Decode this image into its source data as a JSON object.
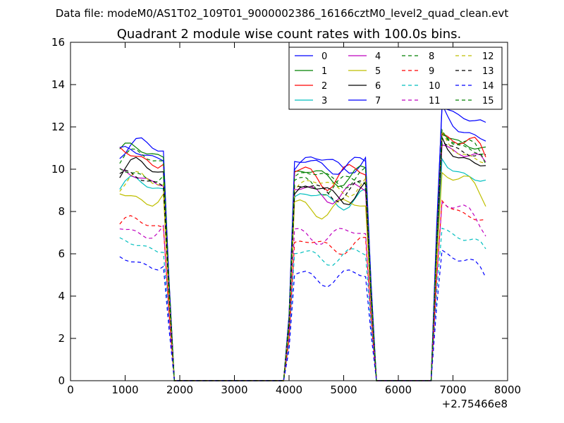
{
  "chart_data": {
    "type": "line",
    "suptitle": "Data file: modeM0/AS1T02_109T01_9000002386_16166cztM0_level2_quad_clean.evt",
    "title": "Quadrant 2 module wise count rates with 100.0s bins.",
    "xlabel": "",
    "ylabel": "",
    "x_offset_label": "+2.75466e8",
    "xlim": [
      0,
      8000
    ],
    "ylim": [
      0,
      16
    ],
    "x_ticks": [
      0,
      1000,
      2000,
      3000,
      4000,
      5000,
      6000,
      7000,
      8000
    ],
    "y_ticks": [
      0,
      2,
      4,
      6,
      8,
      10,
      12,
      14,
      16
    ],
    "legend_position": "top-right",
    "legend_columns": 4,
    "grid": false,
    "segments": [
      {
        "name": "seg1",
        "x": [
          900,
          1000,
          1100,
          1200,
          1300,
          1400,
          1500,
          1600,
          1700
        ]
      },
      {
        "name": "seg2",
        "x": [
          4100,
          4200,
          4300,
          4400,
          4500,
          4600,
          4700,
          4800,
          4900,
          5000,
          5100,
          5200,
          5300,
          5400
        ]
      },
      {
        "name": "seg3",
        "x": [
          6800,
          6900,
          7000,
          7100,
          7200,
          7300,
          7400,
          7500,
          7600
        ]
      }
    ],
    "zero_x": [
      1900,
      2000,
      2100,
      2200,
      2300,
      2400,
      2500,
      2600,
      2700,
      2800,
      2900,
      3000,
      3100,
      3200,
      3300,
      3400,
      3500,
      3600,
      3700,
      3800,
      3900,
      5600,
      5700,
      5800,
      5900,
      6000,
      6100,
      6200,
      6300,
      6400,
      6500,
      6600
    ],
    "series": [
      {
        "name": "0",
        "color": "#0000ff",
        "dash": "solid",
        "base": [
          11.0,
          10.3,
          12.7
        ],
        "amp": 0.35,
        "phase": 0.0
      },
      {
        "name": "1",
        "color": "#008000",
        "dash": "solid",
        "base": [
          10.8,
          9.7,
          12.0
        ],
        "amp": 0.35,
        "phase": 1.1
      },
      {
        "name": "2",
        "color": "#ff0000",
        "dash": "solid",
        "base": [
          10.6,
          9.7,
          11.9
        ],
        "amp": 0.45,
        "phase": 2.3
      },
      {
        "name": "3",
        "color": "#00bfbf",
        "dash": "solid",
        "base": [
          9.2,
          8.6,
          10.6
        ],
        "amp": 0.35,
        "phase": 0.7
      },
      {
        "name": "4",
        "color": "#bf00bf",
        "dash": "solid",
        "base": [
          9.6,
          8.9,
          11.4
        ],
        "amp": 0.35,
        "phase": 1.9
      },
      {
        "name": "5",
        "color": "#bfbf00",
        "dash": "solid",
        "base": [
          8.7,
          8.2,
          10.0
        ],
        "amp": 0.35,
        "phase": 2.9
      },
      {
        "name": "6",
        "color": "#000000",
        "dash": "solid",
        "base": [
          10.0,
          8.9,
          11.4
        ],
        "amp": 0.4,
        "phase": 0.4
      },
      {
        "name": "7",
        "color": "#0000ff",
        "dash": "solid",
        "base": [
          10.7,
          10.2,
          13.2
        ],
        "amp": 0.3,
        "phase": 1.5
      },
      {
        "name": "8",
        "color": "#008000",
        "dash": "dashed",
        "base": [
          9.8,
          9.3,
          11.8
        ],
        "amp": 0.35,
        "phase": 2.6
      },
      {
        "name": "9",
        "color": "#ff0000",
        "dash": "dashed",
        "base": [
          7.4,
          6.4,
          8.7
        ],
        "amp": 0.3,
        "phase": 0.9
      },
      {
        "name": "10",
        "color": "#00bfbf",
        "dash": "dashed",
        "base": [
          6.4,
          5.9,
          7.4
        ],
        "amp": 0.3,
        "phase": 2.0
      },
      {
        "name": "11",
        "color": "#bf00bf",
        "dash": "dashed",
        "base": [
          7.1,
          6.9,
          8.6
        ],
        "amp": 0.3,
        "phase": 3.1
      },
      {
        "name": "12",
        "color": "#bfbf00",
        "dash": "dashed",
        "base": [
          9.4,
          9.2,
          11.6
        ],
        "amp": 0.35,
        "phase": 0.2
      },
      {
        "name": "13",
        "color": "#000000",
        "dash": "dashed",
        "base": [
          9.5,
          9.0,
          11.6
        ],
        "amp": 0.35,
        "phase": 1.3
      },
      {
        "name": "14",
        "color": "#0000ff",
        "dash": "dashed",
        "base": [
          5.6,
          4.9,
          6.3
        ],
        "amp": 0.3,
        "phase": 2.4
      },
      {
        "name": "15",
        "color": "#008000",
        "dash": "dashed",
        "base": [
          10.5,
          9.6,
          11.9
        ],
        "amp": 0.35,
        "phase": 0.6
      }
    ]
  }
}
